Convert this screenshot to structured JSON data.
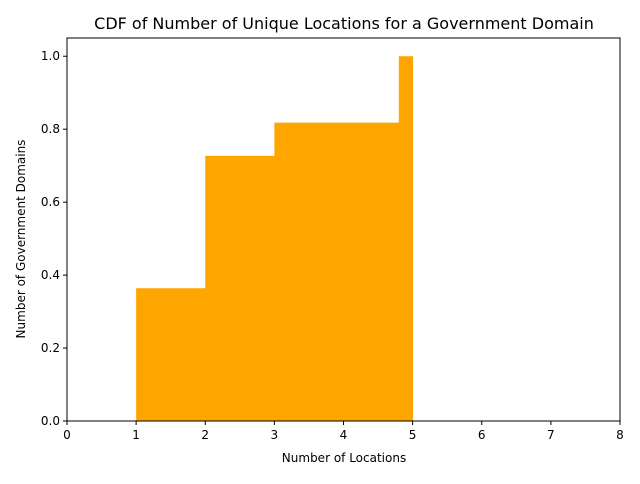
{
  "chart_data": {
    "type": "area",
    "title": "CDF of Number of Unique Locations for a Government Domain",
    "xlabel": "Number of Locations",
    "ylabel": "Number of Government Domains",
    "xlim": [
      0,
      8
    ],
    "ylim": [
      0,
      1.05
    ],
    "xticks": [
      "0",
      "1",
      "2",
      "3",
      "4",
      "5",
      "6",
      "7",
      "8"
    ],
    "yticks": [
      "0.0",
      "0.2",
      "0.4",
      "0.6",
      "0.8",
      "1.0"
    ],
    "grid": false,
    "legend": "none",
    "color": "#ffa500",
    "series": [
      {
        "steps": [
          {
            "x0": 1,
            "x1": 2,
            "y": 0.364
          },
          {
            "x0": 2,
            "x1": 3,
            "y": 0.727
          },
          {
            "x0": 3,
            "x1": 4.8,
            "y": 0.818
          },
          {
            "x0": 4.8,
            "x1": 5,
            "y": 1.0
          }
        ]
      }
    ]
  }
}
